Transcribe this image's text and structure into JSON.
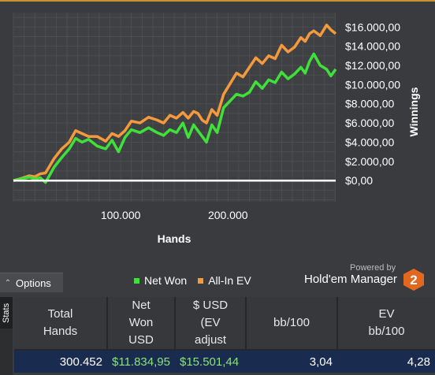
{
  "chart_data": {
    "type": "line",
    "xlabel": "Hands",
    "ylabel": "Winnings",
    "x_ticks": [
      "100.000",
      "200.000"
    ],
    "x_tick_values": [
      100000,
      200000
    ],
    "y_ticks": [
      "$16.000,00",
      "$14.000,00",
      "$12.000,00",
      "$10.000,00",
      "$8.000,00",
      "$6.000,00",
      "$4.000,00",
      "$2.000,00",
      "$0,00"
    ],
    "y_tick_values": [
      16000,
      14000,
      12000,
      10000,
      8000,
      6000,
      4000,
      2000,
      0
    ],
    "xlim": [
      0,
      300452
    ],
    "ylim": [
      -2200,
      17500
    ],
    "series": [
      {
        "name": "Net Won",
        "color": "#3fe03a",
        "x": [
          0,
          8000,
          15000,
          20000,
          25000,
          30000,
          38000,
          45000,
          52000,
          58000,
          64000,
          70000,
          78000,
          86000,
          92000,
          98000,
          104000,
          110000,
          118000,
          126000,
          134000,
          140000,
          146000,
          152000,
          158000,
          163000,
          168000,
          172000,
          176000,
          180000,
          185000,
          190000,
          196000,
          202000,
          208000,
          214000,
          220000,
          226000,
          232000,
          238000,
          244000,
          250000,
          256000,
          262000,
          268000,
          272000,
          276000,
          280000,
          286000,
          292000,
          296000,
          300452
        ],
        "values": [
          0,
          200,
          350,
          150,
          300,
          -200,
          1400,
          2400,
          3300,
          4400,
          4000,
          4300,
          3600,
          3300,
          4200,
          3000,
          4500,
          5300,
          5000,
          5500,
          5000,
          4700,
          5300,
          5000,
          6000,
          4500,
          5800,
          5200,
          4600,
          4000,
          5800,
          5000,
          7600,
          8300,
          9000,
          8800,
          9200,
          10300,
          9600,
          10500,
          10200,
          11300,
          10600,
          11100,
          11800,
          11200,
          12400,
          13200,
          12000,
          11600,
          10900,
          11600
        ]
      },
      {
        "name": "All-In EV",
        "color": "#f59a3c",
        "x": [
          0,
          8000,
          15000,
          20000,
          25000,
          30000,
          38000,
          45000,
          52000,
          58000,
          64000,
          70000,
          78000,
          86000,
          92000,
          98000,
          104000,
          110000,
          118000,
          126000,
          134000,
          140000,
          146000,
          152000,
          158000,
          163000,
          168000,
          172000,
          176000,
          180000,
          185000,
          190000,
          196000,
          202000,
          208000,
          214000,
          220000,
          226000,
          232000,
          238000,
          244000,
          250000,
          256000,
          262000,
          268000,
          272000,
          276000,
          280000,
          286000,
          292000,
          296000,
          300452
        ],
        "values": [
          0,
          250,
          500,
          400,
          700,
          800,
          2300,
          3300,
          4000,
          5200,
          4900,
          4600,
          4600,
          4100,
          4900,
          4600,
          5200,
          6200,
          6000,
          6600,
          6300,
          6000,
          6800,
          6500,
          7100,
          6500,
          7200,
          7000,
          6300,
          6000,
          7400,
          6800,
          9000,
          10100,
          11200,
          10800,
          11800,
          12800,
          12200,
          13000,
          12700,
          14100,
          13400,
          13900,
          14900,
          14500,
          15300,
          15600,
          15100,
          16200,
          15700,
          15300
        ]
      }
    ],
    "baseline": 0,
    "grid": true,
    "legend_position": "bottom"
  },
  "options": {
    "label": "Options",
    "caret_icon": "caret-up-icon"
  },
  "legend": [
    {
      "label": "Net Won",
      "color": "#3fe03a"
    },
    {
      "label": "All-In EV",
      "color": "#f59a3c"
    }
  ],
  "branding": {
    "powered_by": "Powered by",
    "name": "Hold'em Manager",
    "badge": "2",
    "badge_color": "#e2671f"
  },
  "stats": {
    "tab_label": "Stats",
    "headers": [
      "Total\nHands",
      "Net\nWon\nUSD",
      "$ USD\n(EV\nadjust",
      "bb/100",
      "EV\nbb/100"
    ],
    "row": [
      "300.452",
      "$11.834,95",
      "$15.501,44",
      "3,04",
      "4,28"
    ]
  }
}
